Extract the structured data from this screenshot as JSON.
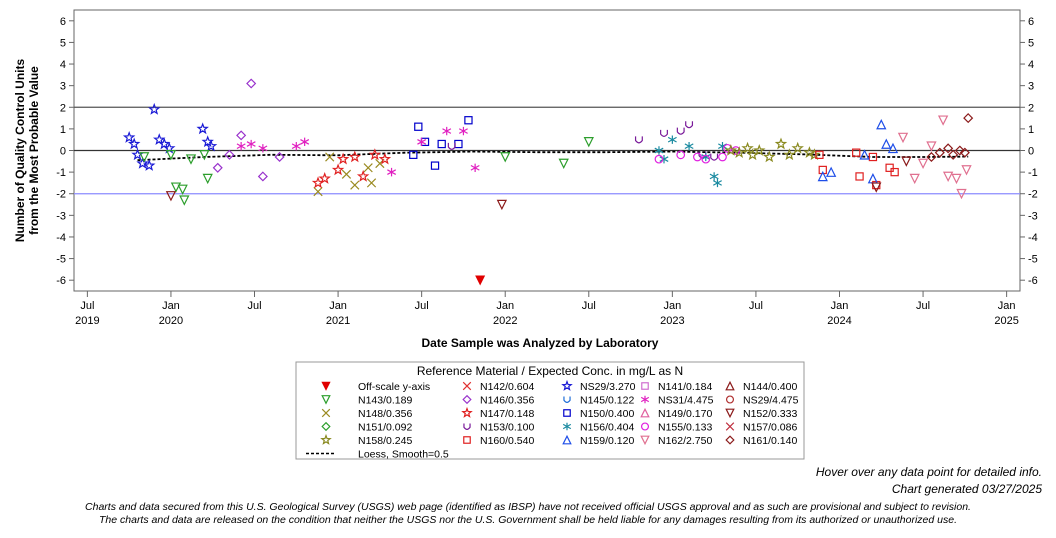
{
  "chart_data": {
    "type": "scatter",
    "title": "",
    "ylabel_line1": "Number of Quality Control Units",
    "ylabel_line2": "from the Most Probable Value",
    "xlabel": "Date Sample was Analyzed by Laboratory",
    "ylim": [
      -6.5,
      6.5
    ],
    "xlim": [
      2019.42,
      2025.08
    ],
    "y_ticks": [
      6,
      5,
      4,
      3,
      2,
      1,
      0,
      -1,
      -2,
      -3,
      -4,
      -5,
      -6
    ],
    "x_ticks": [
      {
        "x": 2019.5,
        "line1": "Jul",
        "line2": "2019"
      },
      {
        "x": 2020.0,
        "line1": "Jan",
        "line2": "2020"
      },
      {
        "x": 2020.5,
        "line1": "Jul",
        "line2": ""
      },
      {
        "x": 2021.0,
        "line1": "Jan",
        "line2": "2021"
      },
      {
        "x": 2021.5,
        "line1": "Jul",
        "line2": ""
      },
      {
        "x": 2022.0,
        "line1": "Jan",
        "line2": "2022"
      },
      {
        "x": 2022.5,
        "line1": "Jul",
        "line2": ""
      },
      {
        "x": 2023.0,
        "line1": "Jan",
        "line2": "2023"
      },
      {
        "x": 2023.5,
        "line1": "Jul",
        "line2": ""
      },
      {
        "x": 2024.0,
        "line1": "Jan",
        "line2": "2024"
      },
      {
        "x": 2024.5,
        "line1": "Jul",
        "line2": ""
      },
      {
        "x": 2025.0,
        "line1": "Jan",
        "line2": "2025"
      }
    ],
    "reference_lines": [
      {
        "y": 2,
        "color": "#555555"
      },
      {
        "y": 0,
        "color": "#333333"
      },
      {
        "y": -2,
        "color": "#8c8cff"
      }
    ],
    "legend_title": "Reference Material / Expected Conc. in mg/L as N",
    "legend": [
      {
        "label": "Off-scale y-axis",
        "marker": "tri-down-filled",
        "color": "#e00000"
      },
      {
        "label": "N142/0.604",
        "marker": "x",
        "color": "#e03030"
      },
      {
        "label": "NS29/3.270",
        "marker": "star",
        "color": "#1b1bd6"
      },
      {
        "label": "N141/0.184",
        "marker": "square",
        "color": "#d070d0"
      },
      {
        "label": "N144/0.400",
        "marker": "triangle",
        "color": "#8b1a1a"
      },
      {
        "label": "N143/0.189",
        "marker": "tri-down",
        "color": "#2c9e2c"
      },
      {
        "label": "N146/0.356",
        "marker": "diamond",
        "color": "#9932cc"
      },
      {
        "label": "N145/0.122",
        "marker": "cup",
        "color": "#1e6ed8"
      },
      {
        "label": "NS31/4.475",
        "marker": "asterisk",
        "color": "#e020c0"
      },
      {
        "label": "NS29/4.475",
        "marker": "circle",
        "color": "#b03030"
      },
      {
        "label": "N148/0.356",
        "marker": "x",
        "color": "#9a8a20"
      },
      {
        "label": "N147/0.148",
        "marker": "star",
        "color": "#e02020"
      },
      {
        "label": "N150/0.400",
        "marker": "square",
        "color": "#0000cc"
      },
      {
        "label": "N149/0.170",
        "marker": "triangle",
        "color": "#e060a0"
      },
      {
        "label": "N152/0.333",
        "marker": "tri-down",
        "color": "#8b1a1a"
      },
      {
        "label": "N151/0.092",
        "marker": "diamond",
        "color": "#2c9e2c"
      },
      {
        "label": "N153/0.100",
        "marker": "cup",
        "color": "#7a1a9a"
      },
      {
        "label": "N156/0.404",
        "marker": "asterisk",
        "color": "#1a8aa0"
      },
      {
        "label": "N155/0.133",
        "marker": "circle",
        "color": "#e020e0"
      },
      {
        "label": "N157/0.086",
        "marker": "x",
        "color": "#c03040"
      },
      {
        "label": "N158/0.245",
        "marker": "star",
        "color": "#8a8a20"
      },
      {
        "label": "N160/0.540",
        "marker": "square",
        "color": "#e02020"
      },
      {
        "label": "N159/0.120",
        "marker": "triangle",
        "color": "#1e4ee8"
      },
      {
        "label": "N162/2.750",
        "marker": "tri-down",
        "color": "#e07090"
      },
      {
        "label": "N161/0.140",
        "marker": "diamond",
        "color": "#8b1a1a"
      },
      {
        "label": "Loess, Smooth=0.5",
        "marker": "dash-line",
        "color": "#000000"
      }
    ],
    "series": [
      {
        "name": "NS29/3.270",
        "points": [
          [
            2019.75,
            0.6
          ],
          [
            2019.78,
            0.3
          ],
          [
            2019.8,
            -0.2
          ],
          [
            2019.83,
            -0.6
          ],
          [
            2019.87,
            -0.7
          ],
          [
            2019.9,
            1.9
          ],
          [
            2019.93,
            0.5
          ],
          [
            2019.96,
            0.3
          ],
          [
            2019.99,
            0.1
          ],
          [
            2020.19,
            1.0
          ],
          [
            2020.22,
            0.4
          ],
          [
            2020.24,
            0.2
          ]
        ]
      },
      {
        "name": "N143/0.189",
        "points": [
          [
            2019.84,
            -0.3
          ],
          [
            2020.0,
            -0.2
          ],
          [
            2020.03,
            -1.7
          ],
          [
            2020.07,
            -1.8
          ],
          [
            2020.08,
            -2.3
          ],
          [
            2020.12,
            -0.4
          ],
          [
            2020.2,
            -0.2
          ],
          [
            2020.22,
            -1.3
          ],
          [
            2022.0,
            -0.3
          ],
          [
            2022.35,
            -0.6
          ],
          [
            2022.5,
            0.4
          ]
        ]
      },
      {
        "name": "N146/0.356",
        "points": [
          [
            2020.28,
            -0.8
          ],
          [
            2020.35,
            -0.2
          ],
          [
            2020.42,
            0.7
          ],
          [
            2020.48,
            3.1
          ],
          [
            2020.55,
            -1.2
          ],
          [
            2020.65,
            -0.3
          ]
        ]
      },
      {
        "name": "N148/0.356",
        "points": [
          [
            2020.88,
            -1.9
          ],
          [
            2020.95,
            -0.3
          ],
          [
            2021.05,
            -1.1
          ],
          [
            2021.1,
            -1.6
          ],
          [
            2021.18,
            -0.8
          ],
          [
            2021.2,
            -1.5
          ],
          [
            2021.25,
            -0.6
          ]
        ]
      },
      {
        "name": "N147/0.148",
        "points": [
          [
            2020.88,
            -1.5
          ],
          [
            2020.92,
            -1.3
          ],
          [
            2021.0,
            -0.9
          ],
          [
            2021.03,
            -0.4
          ],
          [
            2021.1,
            -0.3
          ],
          [
            2021.15,
            -1.2
          ],
          [
            2021.22,
            -0.2
          ],
          [
            2021.28,
            -0.4
          ]
        ]
      },
      {
        "name": "N150/0.400",
        "points": [
          [
            2021.45,
            -0.2
          ],
          [
            2021.48,
            1.1
          ],
          [
            2021.52,
            0.4
          ],
          [
            2021.58,
            -0.7
          ],
          [
            2021.62,
            0.3
          ],
          [
            2021.72,
            0.3
          ],
          [
            2021.78,
            1.4
          ]
        ]
      },
      {
        "name": "NS31/4.475",
        "points": [
          [
            2020.42,
            0.2
          ],
          [
            2020.48,
            0.3
          ],
          [
            2020.55,
            0.1
          ],
          [
            2020.75,
            0.2
          ],
          [
            2020.8,
            0.4
          ],
          [
            2021.32,
            -1.0
          ],
          [
            2021.5,
            0.4
          ],
          [
            2021.65,
            0.9
          ],
          [
            2021.75,
            0.9
          ],
          [
            2021.82,
            -0.8
          ]
        ]
      },
      {
        "name": "N153/0.100",
        "points": [
          [
            2021.68,
            0.2
          ],
          [
            2022.8,
            0.5
          ],
          [
            2022.95,
            0.8
          ],
          [
            2023.05,
            0.9
          ],
          [
            2023.1,
            1.2
          ],
          [
            2023.18,
            -0.2
          ],
          [
            2023.25,
            -0.3
          ]
        ]
      },
      {
        "name": "N156/0.404",
        "points": [
          [
            2022.92,
            0.0
          ],
          [
            2022.95,
            -0.4
          ],
          [
            2023.0,
            0.5
          ],
          [
            2023.1,
            0.2
          ],
          [
            2023.2,
            -0.3
          ],
          [
            2023.25,
            -1.2
          ],
          [
            2023.27,
            -1.5
          ],
          [
            2023.3,
            0.2
          ]
        ]
      },
      {
        "name": "N155/0.133",
        "points": [
          [
            2022.92,
            -0.4
          ],
          [
            2023.05,
            -0.2
          ],
          [
            2023.15,
            -0.3
          ],
          [
            2023.2,
            -0.4
          ],
          [
            2023.3,
            -0.3
          ],
          [
            2023.33,
            0.1
          ],
          [
            2023.38,
            0.0
          ]
        ]
      },
      {
        "name": "N158/0.245",
        "points": [
          [
            2023.35,
            0.0
          ],
          [
            2023.4,
            -0.1
          ],
          [
            2023.45,
            0.1
          ],
          [
            2023.48,
            -0.2
          ],
          [
            2023.52,
            0.0
          ],
          [
            2023.58,
            -0.3
          ],
          [
            2023.65,
            0.3
          ],
          [
            2023.7,
            -0.2
          ],
          [
            2023.75,
            0.1
          ],
          [
            2023.82,
            -0.1
          ],
          [
            2023.85,
            -0.2
          ]
        ]
      },
      {
        "name": "N160/0.540",
        "points": [
          [
            2023.88,
            -0.2
          ],
          [
            2023.9,
            -0.9
          ],
          [
            2024.1,
            -0.1
          ],
          [
            2024.12,
            -1.2
          ],
          [
            2024.2,
            -0.3
          ],
          [
            2024.22,
            -1.6
          ],
          [
            2024.3,
            -0.8
          ],
          [
            2024.33,
            -1.0
          ]
        ]
      },
      {
        "name": "N159/0.120",
        "points": [
          [
            2023.9,
            -1.2
          ],
          [
            2023.95,
            -1.0
          ],
          [
            2024.15,
            -0.2
          ],
          [
            2024.2,
            -1.3
          ],
          [
            2024.25,
            1.2
          ],
          [
            2024.28,
            0.3
          ],
          [
            2024.32,
            0.1
          ]
        ]
      },
      {
        "name": "N162/2.750",
        "points": [
          [
            2024.38,
            0.6
          ],
          [
            2024.45,
            -1.3
          ],
          [
            2024.5,
            -0.6
          ],
          [
            2024.55,
            0.2
          ],
          [
            2024.62,
            1.4
          ],
          [
            2024.65,
            -1.2
          ],
          [
            2024.7,
            -1.3
          ],
          [
            2024.73,
            -2.0
          ],
          [
            2024.76,
            -0.9
          ]
        ]
      },
      {
        "name": "N161/0.140",
        "points": [
          [
            2024.55,
            -0.3
          ],
          [
            2024.6,
            -0.1
          ],
          [
            2024.65,
            0.1
          ],
          [
            2024.68,
            -0.2
          ],
          [
            2024.72,
            0.0
          ],
          [
            2024.75,
            -0.1
          ],
          [
            2024.77,
            1.5
          ]
        ]
      },
      {
        "name": "N152/0.333",
        "points": [
          [
            2020.0,
            -2.1
          ],
          [
            2021.98,
            -2.5
          ],
          [
            2024.22,
            -1.7
          ],
          [
            2024.4,
            -0.5
          ]
        ]
      },
      {
        "name": "Off-scale y-axis",
        "points": [
          [
            2021.85,
            -6.0
          ]
        ]
      }
    ],
    "loess": [
      [
        2019.8,
        -0.45
      ],
      [
        2020.2,
        -0.3
      ],
      [
        2020.6,
        -0.2
      ],
      [
        2021.0,
        -0.22
      ],
      [
        2021.4,
        -0.1
      ],
      [
        2021.8,
        -0.05
      ],
      [
        2022.2,
        -0.08
      ],
      [
        2022.6,
        -0.08
      ],
      [
        2023.0,
        -0.05
      ],
      [
        2023.4,
        -0.1
      ],
      [
        2023.8,
        -0.18
      ],
      [
        2024.2,
        -0.3
      ],
      [
        2024.5,
        -0.3
      ],
      [
        2024.77,
        -0.28
      ]
    ]
  },
  "notes": {
    "hover": "Hover over any data point for detailed info.",
    "generated": "Chart generated 03/27/2025",
    "disclaimer_1": "Charts and data secured from this U.S. Geological Survey (USGS) web page (identified as IBSP) have not received official USGS approval and as such are provisional and subject to revision.",
    "disclaimer_2": "The charts and data are released on the condition that neither the USGS nor the U.S. Government shall be held liable for any damages resulting from its authorized or unauthorized use."
  }
}
